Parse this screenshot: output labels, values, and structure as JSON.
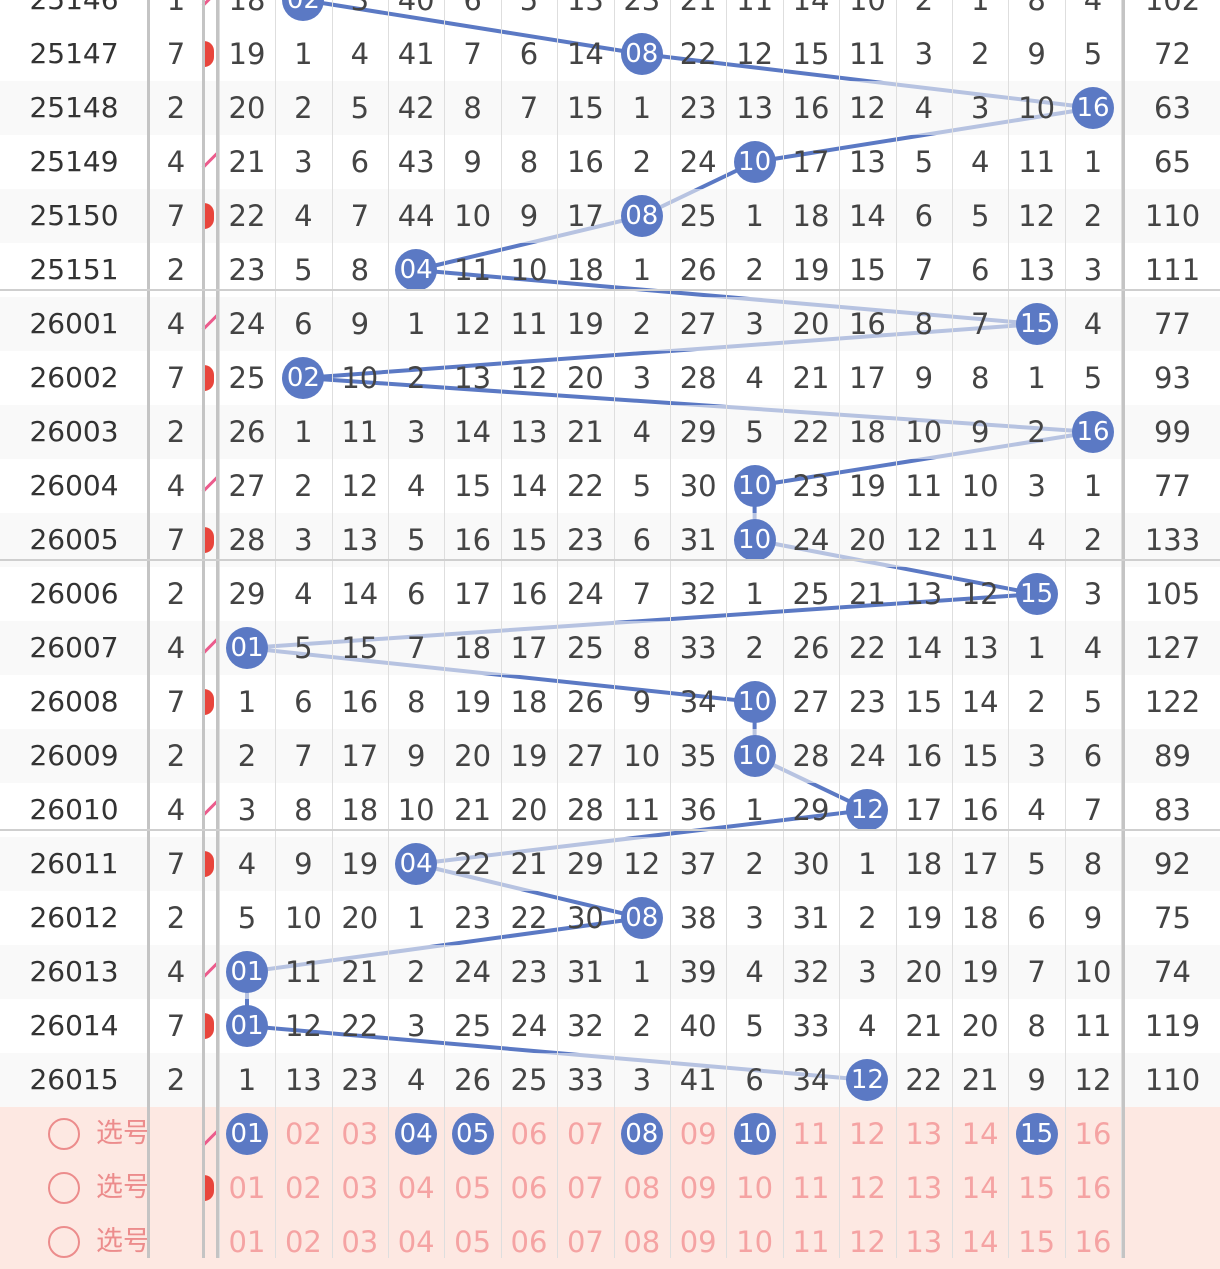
{
  "colors": {
    "ball": "#5b79c4",
    "line": "#5b79c4",
    "pick_text": "#f5a3a3",
    "pick_row_bg": "#fde8e2"
  },
  "top_partial": {
    "issue": "25146",
    "c1": "1",
    "cells": [
      "18",
      "02",
      "3",
      "40",
      "6",
      "5",
      "13",
      "23",
      "21",
      "11",
      "14",
      "10",
      "2",
      "1",
      "8",
      "4"
    ],
    "sum": "102"
  },
  "rows": [
    {
      "issue": "25147",
      "c1": "7",
      "cells": [
        "19",
        "1",
        "4",
        "41",
        "7",
        "6",
        "14",
        "08",
        "22",
        "12",
        "15",
        "11",
        "3",
        "2",
        "9",
        "5"
      ],
      "sum": "72",
      "hit": 7
    },
    {
      "issue": "25148",
      "c1": "2",
      "cells": [
        "20",
        "2",
        "5",
        "42",
        "8",
        "7",
        "15",
        "1",
        "23",
        "13",
        "16",
        "12",
        "4",
        "3",
        "10",
        "16"
      ],
      "sum": "63",
      "hit": 15
    },
    {
      "issue": "25149",
      "c1": "4",
      "cells": [
        "21",
        "3",
        "6",
        "43",
        "9",
        "8",
        "16",
        "2",
        "24",
        "10",
        "17",
        "13",
        "5",
        "4",
        "11",
        "1"
      ],
      "sum": "65",
      "hit": 9
    },
    {
      "issue": "25150",
      "c1": "7",
      "cells": [
        "22",
        "4",
        "7",
        "44",
        "10",
        "9",
        "17",
        "08",
        "25",
        "1",
        "18",
        "14",
        "6",
        "5",
        "12",
        "2"
      ],
      "sum": "110",
      "hit": 7
    },
    {
      "issue": "25151",
      "c1": "2",
      "cells": [
        "23",
        "5",
        "8",
        "04",
        "11",
        "10",
        "18",
        "1",
        "26",
        "2",
        "19",
        "15",
        "7",
        "6",
        "13",
        "3"
      ],
      "sum": "111",
      "hit": 3
    },
    {
      "issue": "26001",
      "c1": "4",
      "cells": [
        "24",
        "6",
        "9",
        "1",
        "12",
        "11",
        "19",
        "2",
        "27",
        "3",
        "20",
        "16",
        "8",
        "7",
        "15",
        "4"
      ],
      "sum": "77",
      "hit": 14
    },
    {
      "issue": "26002",
      "c1": "7",
      "cells": [
        "25",
        "02",
        "10",
        "2",
        "13",
        "12",
        "20",
        "3",
        "28",
        "4",
        "21",
        "17",
        "9",
        "8",
        "1",
        "5"
      ],
      "sum": "93",
      "hit": 1
    },
    {
      "issue": "26003",
      "c1": "2",
      "cells": [
        "26",
        "1",
        "11",
        "3",
        "14",
        "13",
        "21",
        "4",
        "29",
        "5",
        "22",
        "18",
        "10",
        "9",
        "2",
        "16"
      ],
      "sum": "99",
      "hit": 15
    },
    {
      "issue": "26004",
      "c1": "4",
      "cells": [
        "27",
        "2",
        "12",
        "4",
        "15",
        "14",
        "22",
        "5",
        "30",
        "10",
        "23",
        "19",
        "11",
        "10",
        "3",
        "1"
      ],
      "sum": "77",
      "hit": 9
    },
    {
      "issue": "26005",
      "c1": "7",
      "cells": [
        "28",
        "3",
        "13",
        "5",
        "16",
        "15",
        "23",
        "6",
        "31",
        "10",
        "24",
        "20",
        "12",
        "11",
        "4",
        "2"
      ],
      "sum": "133",
      "hit": 9
    },
    {
      "issue": "26006",
      "c1": "2",
      "cells": [
        "29",
        "4",
        "14",
        "6",
        "17",
        "16",
        "24",
        "7",
        "32",
        "1",
        "25",
        "21",
        "13",
        "12",
        "15",
        "3"
      ],
      "sum": "105",
      "hit": 14
    },
    {
      "issue": "26007",
      "c1": "4",
      "cells": [
        "01",
        "5",
        "15",
        "7",
        "18",
        "17",
        "25",
        "8",
        "33",
        "2",
        "26",
        "22",
        "14",
        "13",
        "1",
        "4"
      ],
      "sum": "127",
      "hit": 0
    },
    {
      "issue": "26008",
      "c1": "7",
      "cells": [
        "1",
        "6",
        "16",
        "8",
        "19",
        "18",
        "26",
        "9",
        "34",
        "10",
        "27",
        "23",
        "15",
        "14",
        "2",
        "5"
      ],
      "sum": "122",
      "hit": 9
    },
    {
      "issue": "26009",
      "c1": "2",
      "cells": [
        "2",
        "7",
        "17",
        "9",
        "20",
        "19",
        "27",
        "10",
        "35",
        "10",
        "28",
        "24",
        "16",
        "15",
        "3",
        "6"
      ],
      "sum": "89",
      "hit": 9
    },
    {
      "issue": "26010",
      "c1": "4",
      "cells": [
        "3",
        "8",
        "18",
        "10",
        "21",
        "20",
        "28",
        "11",
        "36",
        "1",
        "29",
        "12",
        "17",
        "16",
        "4",
        "7"
      ],
      "sum": "83",
      "hit": 11
    },
    {
      "issue": "26011",
      "c1": "7",
      "cells": [
        "4",
        "9",
        "19",
        "04",
        "22",
        "21",
        "29",
        "12",
        "37",
        "2",
        "30",
        "1",
        "18",
        "17",
        "5",
        "8"
      ],
      "sum": "92",
      "hit": 3
    },
    {
      "issue": "26012",
      "c1": "2",
      "cells": [
        "5",
        "10",
        "20",
        "1",
        "23",
        "22",
        "30",
        "08",
        "38",
        "3",
        "31",
        "2",
        "19",
        "18",
        "6",
        "9"
      ],
      "sum": "75",
      "hit": 7
    },
    {
      "issue": "26013",
      "c1": "4",
      "cells": [
        "01",
        "11",
        "21",
        "2",
        "24",
        "23",
        "31",
        "1",
        "39",
        "4",
        "32",
        "3",
        "20",
        "19",
        "7",
        "10"
      ],
      "sum": "74",
      "hit": 0
    },
    {
      "issue": "26014",
      "c1": "7",
      "cells": [
        "01",
        "12",
        "22",
        "3",
        "25",
        "24",
        "32",
        "2",
        "40",
        "5",
        "33",
        "4",
        "21",
        "20",
        "8",
        "11"
      ],
      "sum": "119",
      "hit": 0
    },
    {
      "issue": "26015",
      "c1": "2",
      "cells": [
        "1",
        "13",
        "23",
        "4",
        "26",
        "25",
        "33",
        "3",
        "41",
        "6",
        "34",
        "12",
        "22",
        "21",
        "9",
        "12"
      ],
      "sum": "110",
      "hit": 11
    }
  ],
  "pick_rows": [
    {
      "label": "选号",
      "numbers": [
        "01",
        "02",
        "03",
        "04",
        "05",
        "06",
        "07",
        "08",
        "09",
        "10",
        "11",
        "12",
        "13",
        "14",
        "15",
        "16"
      ],
      "selected": [
        0,
        3,
        4,
        7,
        9,
        14
      ]
    },
    {
      "label": "选号",
      "numbers": [
        "01",
        "02",
        "03",
        "04",
        "05",
        "06",
        "07",
        "08",
        "09",
        "10",
        "11",
        "12",
        "13",
        "14",
        "15",
        "16"
      ],
      "selected": []
    },
    {
      "label": "选号",
      "numbers": [
        "01",
        "02",
        "03",
        "04",
        "05",
        "06",
        "07",
        "08",
        "09",
        "10",
        "11",
        "12",
        "13",
        "14",
        "15",
        "16"
      ],
      "selected": []
    }
  ]
}
